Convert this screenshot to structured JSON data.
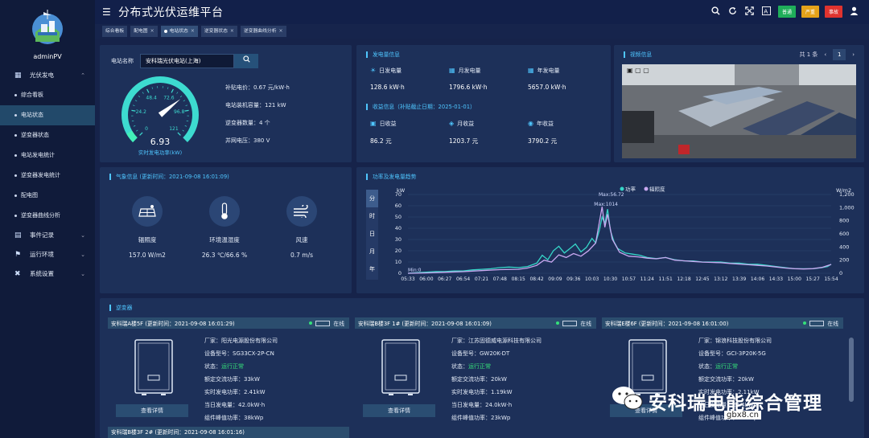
{
  "app": {
    "title": "分布式光伏运维平台",
    "user": "adminPV"
  },
  "sidebar": {
    "groups": [
      {
        "label": "光伏发电",
        "icon": "grid-icon"
      },
      {
        "label": "事件记录",
        "icon": "book-icon"
      },
      {
        "label": "运行环境",
        "icon": "flag-icon"
      },
      {
        "label": "系统设置",
        "icon": "tools-icon"
      }
    ],
    "sub_items": [
      "综合看板",
      "电站状态",
      "逆变器状态",
      "电站发电统计",
      "逆变器发电统计",
      "配电图",
      "逆变器曲线分析"
    ],
    "active_sub": "电站状态"
  },
  "topbar": {
    "icons": [
      "search-icon",
      "refresh-icon",
      "fullscreen-icon",
      "font-icon"
    ],
    "badges": [
      {
        "label": "普通",
        "color": "#1fae5a"
      },
      {
        "label": "严重",
        "color": "#e5a21a"
      },
      {
        "label": "事故",
        "color": "#e0332f"
      }
    ]
  },
  "tabs": [
    {
      "label": "综合看板",
      "active": false
    },
    {
      "label": "配电图",
      "active": false
    },
    {
      "label": "电站状态",
      "active": true
    },
    {
      "label": "逆变器状态",
      "active": false
    },
    {
      "label": "逆变器曲线分析",
      "active": false
    }
  ],
  "station": {
    "search_label": "电站名称",
    "selected": "安科瑞光伏电站(上海)",
    "gauge": {
      "value": "6.93",
      "value_num": 6.93,
      "max": 121,
      "ticks": [
        "0",
        "24.2",
        "48.4",
        "72.6",
        "96.8",
        "121"
      ],
      "caption": "实时发电功率(kW)"
    },
    "info": [
      "补贴电价：0.67 元/kW·h",
      "电站装机容量：121 kW",
      "逆变器数量：4 个",
      "并网电压：380 V"
    ]
  },
  "generation": {
    "title": "发电量信息",
    "items": [
      {
        "label": "日发电量",
        "value": "128.6 kW·h",
        "icon": "sun-icon"
      },
      {
        "label": "月发电量",
        "value": "1796.6 kW·h",
        "icon": "calendar-icon"
      },
      {
        "label": "年发电量",
        "value": "5657.0 kW·h",
        "icon": "calendar-icon"
      }
    ],
    "income_title": "收益信息（补贴截止日期：2025-01-01）",
    "income": [
      {
        "label": "日收益",
        "value": "86.2 元",
        "icon": "money-icon"
      },
      {
        "label": "月收益",
        "value": "1203.7 元",
        "icon": "moneybag-icon"
      },
      {
        "label": "年收益",
        "value": "3790.2 元",
        "icon": "coins-icon"
      }
    ]
  },
  "video": {
    "title": "视频信息",
    "total": "共 1 条",
    "page": "1"
  },
  "weather": {
    "title": "气象信息 (更新时间：2021-09-08 16:01:09)",
    "items": [
      {
        "label": "辐照度",
        "value": "157.0 W/m2",
        "icon": "solar-panel-icon"
      },
      {
        "label": "环境温湿度",
        "value": "26.3 ℃/66.6 %",
        "icon": "thermometer-icon"
      },
      {
        "label": "风速",
        "value": "0.7 m/s",
        "icon": "wind-icon"
      }
    ]
  },
  "trend": {
    "title": "功率及发电量趋势",
    "period_tabs": [
      "分",
      "时",
      "日",
      "月",
      "年"
    ],
    "active_period": "分"
  },
  "chart_data": {
    "type": "line",
    "title": "",
    "ylabel_left": "kW",
    "ylabel_right": "W/m2",
    "yleft_range": [
      0,
      70
    ],
    "yleft_ticks": [
      "0",
      "10",
      "20",
      "30",
      "40",
      "50",
      "60",
      "70"
    ],
    "yright_range": [
      0,
      1200
    ],
    "yright_ticks": [
      "0",
      "200",
      "400",
      "600",
      "800",
      "1,000",
      "1,200"
    ],
    "x_ticks": [
      "05:33",
      "06:00",
      "06:27",
      "06:54",
      "07:21",
      "07:48",
      "08:15",
      "08:42",
      "09:09",
      "09:36",
      "10:03",
      "10:30",
      "10:57",
      "11:24",
      "11:51",
      "12:18",
      "12:45",
      "13:12",
      "13:39",
      "14:06",
      "14:33",
      "15:00",
      "15:27",
      "15:54"
    ],
    "legend": [
      "功率",
      "辐照度"
    ],
    "legend_colors": [
      "#36d6c8",
      "#c9a8f0"
    ],
    "legend_position": "top",
    "annotations": [
      {
        "text": "Max:56.72",
        "x_index": 10.8
      },
      {
        "text": "Max:1014",
        "x_index": 10.55
      },
      {
        "text": "Min:0",
        "x_index": 0
      }
    ],
    "series": [
      {
        "name": "功率",
        "axis": "left",
        "points": [
          [
            0,
            0
          ],
          [
            0.5,
            0.5
          ],
          [
            1,
            1
          ],
          [
            1.5,
            1.5
          ],
          [
            2,
            1.5
          ],
          [
            2.5,
            2
          ],
          [
            3,
            2
          ],
          [
            3.5,
            3
          ],
          [
            4,
            3.5
          ],
          [
            4.5,
            4
          ],
          [
            5,
            5
          ],
          [
            5.5,
            5.5
          ],
          [
            6,
            5
          ],
          [
            6.5,
            6
          ],
          [
            7,
            9
          ],
          [
            7.3,
            16
          ],
          [
            7.6,
            12
          ],
          [
            7.9,
            20
          ],
          [
            8.2,
            24
          ],
          [
            8.5,
            18
          ],
          [
            8.8,
            22
          ],
          [
            9.1,
            26
          ],
          [
            9.4,
            19
          ],
          [
            9.7,
            23
          ],
          [
            10,
            31
          ],
          [
            10.2,
            27
          ],
          [
            10.4,
            38
          ],
          [
            10.55,
            50
          ],
          [
            10.7,
            44
          ],
          [
            10.85,
            57
          ],
          [
            11,
            38
          ],
          [
            11.2,
            28
          ],
          [
            11.4,
            22
          ],
          [
            11.8,
            18
          ],
          [
            12.2,
            17
          ],
          [
            12.6,
            16
          ],
          [
            13,
            14
          ],
          [
            13.5,
            13
          ],
          [
            14,
            14
          ],
          [
            14.5,
            12
          ],
          [
            15,
            11
          ],
          [
            15.5,
            11
          ],
          [
            16,
            10
          ],
          [
            16.5,
            10
          ],
          [
            17,
            10
          ],
          [
            17.5,
            9
          ],
          [
            18,
            9
          ],
          [
            18.5,
            8
          ],
          [
            19,
            8
          ],
          [
            19.5,
            7
          ],
          [
            20,
            6
          ],
          [
            20.5,
            5
          ],
          [
            21,
            4
          ],
          [
            21.5,
            4
          ],
          [
            22,
            4
          ],
          [
            22.5,
            5
          ],
          [
            22.8,
            6
          ],
          [
            23,
            8
          ]
        ]
      },
      {
        "name": "辐照度",
        "axis": "right",
        "points": [
          [
            0,
            0
          ],
          [
            1,
            5
          ],
          [
            2,
            15
          ],
          [
            3,
            25
          ],
          [
            4,
            40
          ],
          [
            5,
            55
          ],
          [
            6,
            60
          ],
          [
            6.5,
            80
          ],
          [
            7,
            120
          ],
          [
            7.4,
            200
          ],
          [
            7.8,
            170
          ],
          [
            8.2,
            280
          ],
          [
            8.6,
            240
          ],
          [
            9,
            300
          ],
          [
            9.4,
            260
          ],
          [
            9.8,
            340
          ],
          [
            10.2,
            460
          ],
          [
            10.55,
            1014
          ],
          [
            10.7,
            700
          ],
          [
            10.85,
            900
          ],
          [
            11.1,
            520
          ],
          [
            11.5,
            320
          ],
          [
            12,
            260
          ],
          [
            12.5,
            250
          ],
          [
            13,
            230
          ],
          [
            13.5,
            220
          ],
          [
            14,
            240
          ],
          [
            14.5,
            200
          ],
          [
            15,
            190
          ],
          [
            15.5,
            180
          ],
          [
            16,
            170
          ],
          [
            16.5,
            165
          ],
          [
            17,
            160
          ],
          [
            17.5,
            150
          ],
          [
            18,
            140
          ],
          [
            18.5,
            130
          ],
          [
            19,
            120
          ],
          [
            19.5,
            110
          ],
          [
            20,
            95
          ],
          [
            20.5,
            80
          ],
          [
            21,
            70
          ],
          [
            21.5,
            65
          ],
          [
            22,
            70
          ],
          [
            22.5,
            90
          ],
          [
            23,
            135
          ]
        ]
      }
    ]
  },
  "inverters": {
    "title": "逆变器",
    "status_label": "在线",
    "detail_button": "查看详情",
    "cards": [
      {
        "header": "安科瑞A楼5F (更新时间：2021-09-08 16:01:29)",
        "fields": [
          {
            "label": "厂家：",
            "value": "阳光电源股份有限公司"
          },
          {
            "label": "设备型号：",
            "value": "SG33CX-2P-CN"
          },
          {
            "label": "状态：",
            "value": "运行正常",
            "ok": true
          },
          {
            "label": "额定交流功率：",
            "value": "33kW"
          },
          {
            "label": "实时发电功率：",
            "value": "2.41kW"
          },
          {
            "label": "当日发电量：",
            "value": "42.0kW·h"
          },
          {
            "label": "组件峰值功率：",
            "value": "38kWp"
          }
        ]
      },
      {
        "header": "安科瑞B楼3F 1# (更新时间：2021-09-08 16:01:09)",
        "fields": [
          {
            "label": "厂家：",
            "value": "江苏固德威电源科技有限公司"
          },
          {
            "label": "设备型号：",
            "value": "GW20K-DT"
          },
          {
            "label": "状态：",
            "value": "运行正常",
            "ok": true
          },
          {
            "label": "额定交流功率：",
            "value": "20kW"
          },
          {
            "label": "实时发电功率：",
            "value": "1.19kW"
          },
          {
            "label": "当日发电量：",
            "value": "24.0kW·h"
          },
          {
            "label": "组件峰值功率：",
            "value": "23kWp"
          }
        ]
      },
      {
        "header": "安科瑞E楼6F (更新时间：2021-09-08 16:01:00)",
        "fields": [
          {
            "label": "厂家：",
            "value": "锦浪科技股份有限公司"
          },
          {
            "label": "设备型号：",
            "value": "GCI-3P20K-5G"
          },
          {
            "label": "状态：",
            "value": "运行正常",
            "ok": true
          },
          {
            "label": "额定交流功率：",
            "value": "20kW"
          },
          {
            "label": "实时发电功率：",
            "value": "2.11kW"
          },
          {
            "label": "当日发电量：",
            "value": "22.4kW·h"
          },
          {
            "label": "组件峰值功率：",
            "value": "22kWp"
          }
        ]
      }
    ],
    "next_header": "安科瑞B楼3F 2# (更新时间：2021-09-08 16:01:16)"
  },
  "watermark": {
    "text": "安科瑞电能综合管理",
    "site": "gbx8.cn"
  }
}
